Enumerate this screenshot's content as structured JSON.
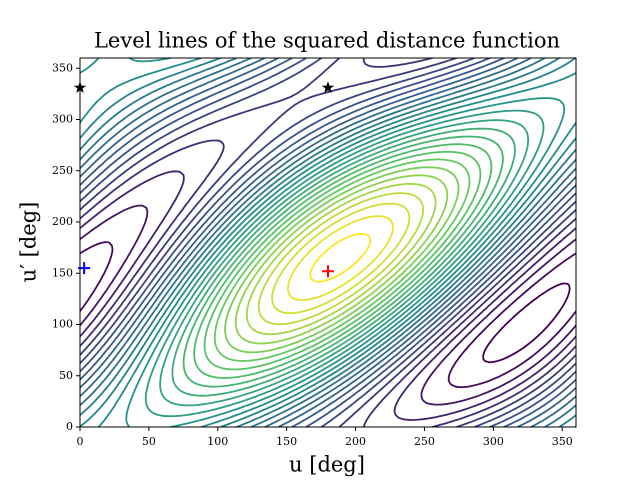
{
  "chart_data": {
    "type": "contour",
    "title": "Level lines of the squared distance function",
    "xlabel": "u [deg]",
    "ylabel": "u′ [deg]",
    "xlim": [
      0,
      360
    ],
    "ylim": [
      0,
      360
    ],
    "xticks": [
      0,
      50,
      100,
      150,
      200,
      250,
      300,
      350
    ],
    "yticks": [
      0,
      50,
      100,
      150,
      200,
      250,
      300,
      350
    ],
    "markers": [
      {
        "marker": "star",
        "color": "#000000",
        "x": [
          0,
          180
        ],
        "y": [
          331,
          331
        ]
      },
      {
        "marker": "plus",
        "color": "#0000ff",
        "x": [
          3
        ],
        "y": [
          155
        ]
      },
      {
        "marker": "plus",
        "color": "#ff0000",
        "x": [
          180
        ],
        "y": [
          152
        ]
      }
    ]
  }
}
